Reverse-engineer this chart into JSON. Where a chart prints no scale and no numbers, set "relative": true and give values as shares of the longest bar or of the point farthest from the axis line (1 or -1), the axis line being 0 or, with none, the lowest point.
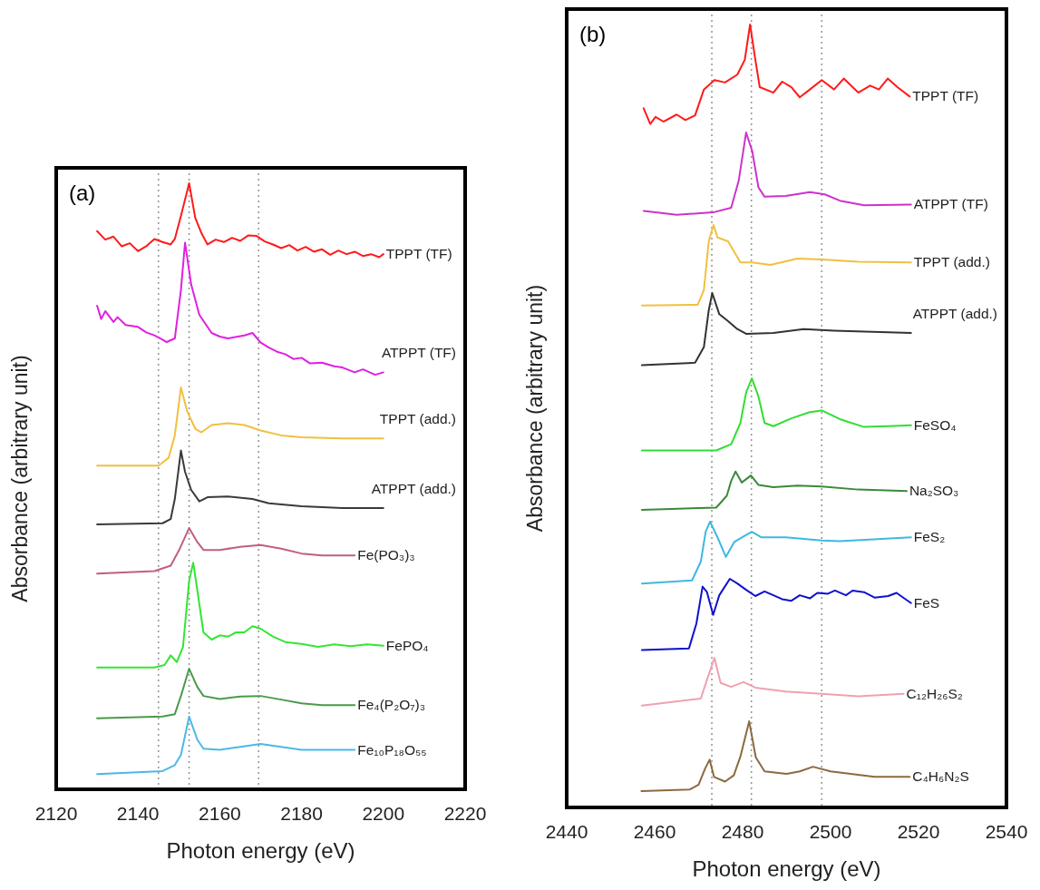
{
  "chart_data": [
    {
      "type": "line",
      "title": "(a)",
      "xlabel": "Photon energy (eV)",
      "ylabel": "Absorbance (arbitrary unit)",
      "relative": true,
      "xlim": [
        2120,
        2220
      ],
      "xticks": [
        2120,
        2140,
        2160,
        2180,
        2200,
        2220
      ],
      "ref_lines": [
        {
          "axis": "x",
          "value": 2145,
          "line_style": "dotted",
          "color": "#999999"
        },
        {
          "axis": "x",
          "value": 2152.5,
          "line_style": "dotted",
          "color": "#999999"
        },
        {
          "axis": "x",
          "value": 2169.5,
          "line_style": "dotted",
          "color": "#999999"
        }
      ],
      "series": [
        {
          "name": "TPPT (TF)",
          "color": "#ff1a1a",
          "x": [
            2130,
            2132,
            2134,
            2136,
            2138,
            2140,
            2142,
            2144,
            2146,
            2148,
            2149,
            2150.5,
            2152.5,
            2154,
            2155.5,
            2157,
            2159,
            2161,
            2163,
            2165,
            2167,
            2169,
            2171,
            2173,
            2175,
            2177,
            2179,
            2181,
            2183,
            2185,
            2187,
            2189,
            2191,
            2193,
            2195,
            2197,
            2199,
            2200
          ],
          "values": [
            0.921,
            0.907,
            0.912,
            0.896,
            0.901,
            0.888,
            0.896,
            0.908,
            0.903,
            0.899,
            0.908,
            0.946,
            1.0,
            0.943,
            0.918,
            0.899,
            0.907,
            0.903,
            0.91,
            0.905,
            0.914,
            0.913,
            0.904,
            0.899,
            0.893,
            0.898,
            0.889,
            0.895,
            0.887,
            0.891,
            0.882,
            0.889,
            0.883,
            0.887,
            0.88,
            0.883,
            0.878,
            0.883
          ]
        },
        {
          "name": "ATPPT (TF)",
          "color": "#e020e0",
          "x": [
            2130,
            2131,
            2132,
            2134,
            2135,
            2137,
            2140,
            2142,
            2144,
            2146,
            2147,
            2149,
            2150.5,
            2151.5,
            2153,
            2155,
            2158,
            2160,
            2162,
            2166,
            2168,
            2170,
            2172,
            2174,
            2176,
            2178,
            2180,
            2182,
            2185,
            2188,
            2190,
            2193,
            2195,
            2198,
            2200
          ],
          "values": [
            0.798,
            0.776,
            0.789,
            0.771,
            0.779,
            0.766,
            0.763,
            0.754,
            0.749,
            0.742,
            0.738,
            0.744,
            0.824,
            0.902,
            0.833,
            0.783,
            0.753,
            0.747,
            0.744,
            0.749,
            0.753,
            0.737,
            0.729,
            0.722,
            0.718,
            0.71,
            0.712,
            0.703,
            0.704,
            0.698,
            0.696,
            0.688,
            0.693,
            0.684,
            0.688
          ]
        },
        {
          "name": "TPPT (add.)",
          "color": "#f0c040",
          "x": [
            2130,
            2145,
            2147.5,
            2149,
            2150.5,
            2152,
            2154,
            2155.5,
            2158,
            2162,
            2166,
            2170,
            2175,
            2180,
            2190,
            2200
          ],
          "values": [
            0.534,
            0.534,
            0.547,
            0.584,
            0.663,
            0.624,
            0.595,
            0.589,
            0.601,
            0.604,
            0.601,
            0.592,
            0.584,
            0.581,
            0.579,
            0.579
          ]
        },
        {
          "name": "ATPPT (add.)",
          "color": "#3a3a3a",
          "x": [
            2130,
            2146,
            2148,
            2149,
            2150.5,
            2151.5,
            2153,
            2155,
            2157,
            2162,
            2168,
            2172,
            2180,
            2190,
            2200
          ],
          "values": [
            0.437,
            0.439,
            0.446,
            0.479,
            0.559,
            0.524,
            0.494,
            0.475,
            0.482,
            0.483,
            0.479,
            0.472,
            0.467,
            0.464,
            0.464
          ]
        },
        {
          "name": "Fe(PO₃)₃",
          "color": "#c0607a",
          "x": [
            2130,
            2144,
            2148,
            2150,
            2152.5,
            2154.5,
            2156,
            2160,
            2165,
            2170,
            2175,
            2180,
            2185,
            2193
          ],
          "values": [
            0.356,
            0.36,
            0.369,
            0.394,
            0.431,
            0.408,
            0.395,
            0.395,
            0.4,
            0.403,
            0.397,
            0.389,
            0.386,
            0.386
          ]
        },
        {
          "name": "FePO₄",
          "color": "#33e633",
          "x": [
            2130,
            2144,
            2146.5,
            2148,
            2149.5,
            2151,
            2152.5,
            2153.5,
            2154.5,
            2156,
            2158,
            2160,
            2162,
            2164,
            2166,
            2168,
            2170,
            2173,
            2176,
            2180,
            2184,
            2188,
            2192,
            2196,
            2200
          ],
          "values": [
            0.201,
            0.201,
            0.205,
            0.221,
            0.21,
            0.235,
            0.344,
            0.374,
            0.329,
            0.259,
            0.247,
            0.254,
            0.252,
            0.259,
            0.259,
            0.269,
            0.265,
            0.252,
            0.243,
            0.24,
            0.235,
            0.239,
            0.236,
            0.239,
            0.237
          ]
        },
        {
          "name": "Fe₄(P₂O₇)₃",
          "color": "#4a9a4a",
          "x": [
            2130,
            2146,
            2149,
            2150.5,
            2152.5,
            2154.5,
            2156,
            2160,
            2165,
            2170,
            2175,
            2180,
            2185,
            2193
          ],
          "values": [
            0.117,
            0.12,
            0.124,
            0.154,
            0.199,
            0.169,
            0.154,
            0.149,
            0.153,
            0.154,
            0.148,
            0.142,
            0.139,
            0.139
          ]
        },
        {
          "name": "Fe₁₀P₁₈O₅₅",
          "color": "#4cb8e8",
          "x": [
            2130,
            2146,
            2149,
            2150.5,
            2152.5,
            2154.5,
            2156,
            2160,
            2165,
            2170,
            2175,
            2180,
            2193
          ],
          "values": [
            0.025,
            0.03,
            0.04,
            0.057,
            0.12,
            0.082,
            0.067,
            0.065,
            0.07,
            0.075,
            0.07,
            0.065,
            0.065
          ]
        }
      ]
    },
    {
      "type": "line",
      "title": "(b)",
      "xlabel": "Photon energy (eV)",
      "ylabel": "Absorbance (arbitrary unit)",
      "relative": true,
      "xlim": [
        2440,
        2540
      ],
      "xticks": [
        2440,
        2460,
        2480,
        2500,
        2520,
        2540
      ],
      "ref_lines": [
        {
          "axis": "x",
          "value": 2473,
          "line_style": "dotted",
          "color": "#999999"
        },
        {
          "axis": "x",
          "value": 2482,
          "line_style": "dotted",
          "color": "#999999"
        },
        {
          "axis": "x",
          "value": 2498,
          "line_style": "dotted",
          "color": "#999999"
        }
      ],
      "series": [
        {
          "name": "TPPT (TF)",
          "color": "#ff1a1a",
          "x": [
            2457.5,
            2459,
            2460.2,
            2462,
            2465,
            2467,
            2469.2,
            2471.2,
            2473.6,
            2476,
            2478.8,
            2480.5,
            2481.7,
            2482.9,
            2483.9,
            2487,
            2489,
            2491.1,
            2493,
            2495.3,
            2498,
            2500.8,
            2503,
            2506.3,
            2509,
            2511,
            2513,
            2515.2,
            2518
          ],
          "values": [
            0.893,
            0.873,
            0.882,
            0.876,
            0.885,
            0.878,
            0.884,
            0.917,
            0.929,
            0.926,
            0.936,
            0.955,
            1.0,
            0.955,
            0.92,
            0.913,
            0.927,
            0.92,
            0.907,
            0.917,
            0.929,
            0.917,
            0.931,
            0.913,
            0.922,
            0.917,
            0.931,
            0.92,
            0.908
          ]
        },
        {
          "name": "ATPPT (TF)",
          "color": "#cc33cc",
          "x": [
            2457.5,
            2465,
            2473.3,
            2477.4,
            2479.1,
            2480.8,
            2482.2,
            2483.6,
            2485,
            2489.8,
            2495.3,
            2498.7,
            2502.1,
            2507.6,
            2518.3
          ],
          "values": [
            0.762,
            0.757,
            0.76,
            0.766,
            0.8,
            0.862,
            0.838,
            0.792,
            0.78,
            0.781,
            0.786,
            0.783,
            0.775,
            0.769,
            0.77
          ]
        },
        {
          "name": "TPPT (add.)",
          "color": "#f0c040",
          "x": [
            2457.1,
            2469.8,
            2471.2,
            2472.3,
            2473.4,
            2474.3,
            2476.7,
            2479.5,
            2482.2,
            2486.3,
            2492.5,
            2498,
            2506.3,
            2518.3
          ],
          "values": [
            0.641,
            0.642,
            0.661,
            0.723,
            0.744,
            0.728,
            0.723,
            0.696,
            0.696,
            0.693,
            0.701,
            0.7,
            0.697,
            0.696
          ]
        },
        {
          "name": "ATPPT (add.)",
          "color": "#333333",
          "x": [
            2457.1,
            2469.2,
            2471.2,
            2472.3,
            2473.1,
            2474.7,
            2476.7,
            2478.8,
            2480.8,
            2487,
            2493.9,
            2500.8,
            2518.3
          ],
          "values": [
            0.565,
            0.568,
            0.588,
            0.635,
            0.657,
            0.63,
            0.621,
            0.611,
            0.605,
            0.606,
            0.611,
            0.609,
            0.606
          ]
        },
        {
          "name": "FeSO₄",
          "color": "#33dd33",
          "x": [
            2457.1,
            2474,
            2477.4,
            2479.5,
            2480.8,
            2482.1,
            2483.6,
            2485,
            2487,
            2491.1,
            2495.3,
            2498,
            2502.1,
            2507.6,
            2513.1,
            2518.3
          ],
          "values": [
            0.456,
            0.456,
            0.464,
            0.491,
            0.53,
            0.548,
            0.525,
            0.491,
            0.487,
            0.497,
            0.505,
            0.507,
            0.496,
            0.486,
            0.487,
            0.488
          ]
        },
        {
          "name": "Na₂SO₃",
          "color": "#3a8a3a",
          "x": [
            2457.1,
            2474,
            2476.4,
            2477.4,
            2478.4,
            2479.8,
            2481.9,
            2483.6,
            2487,
            2492.5,
            2498,
            2506.3,
            2517.3
          ],
          "values": [
            0.38,
            0.383,
            0.398,
            0.417,
            0.429,
            0.415,
            0.424,
            0.412,
            0.409,
            0.411,
            0.41,
            0.406,
            0.404
          ]
        },
        {
          "name": "FeS₂",
          "color": "#40b8e0",
          "x": [
            2457.1,
            2468.5,
            2470.5,
            2471.6,
            2472.6,
            2474.3,
            2476.2,
            2478.1,
            2480.2,
            2482.1,
            2484.3,
            2489.8,
            2498,
            2502.1,
            2518.3
          ],
          "values": [
            0.286,
            0.29,
            0.314,
            0.352,
            0.365,
            0.345,
            0.32,
            0.339,
            0.346,
            0.352,
            0.345,
            0.345,
            0.341,
            0.34,
            0.345
          ]
        },
        {
          "name": "FeS",
          "color": "#1010cc",
          "x": [
            2457.1,
            2467.8,
            2469.5,
            2470.9,
            2471.9,
            2473.3,
            2474.7,
            2477.1,
            2478.8,
            2480.8,
            2482.9,
            2485,
            2487,
            2489,
            2491.1,
            2493,
            2495.3,
            2497,
            2499.4,
            2501,
            2503.5,
            2505,
            2507.6,
            2510,
            2513.1,
            2515,
            2518.3
          ],
          "values": [
            0.201,
            0.203,
            0.235,
            0.282,
            0.275,
            0.246,
            0.271,
            0.292,
            0.286,
            0.278,
            0.27,
            0.276,
            0.271,
            0.266,
            0.264,
            0.271,
            0.267,
            0.274,
            0.273,
            0.277,
            0.271,
            0.277,
            0.275,
            0.268,
            0.27,
            0.274,
            0.261
          ]
        },
        {
          "name": "C₁₂H₂₆S₂",
          "color": "#f0a0b0",
          "x": [
            2457.1,
            2470.5,
            2471.9,
            2473.6,
            2475,
            2477.4,
            2480.2,
            2482.9,
            2489.8,
            2498,
            2506.3,
            2516.6
          ],
          "values": [
            0.13,
            0.139,
            0.163,
            0.191,
            0.159,
            0.154,
            0.16,
            0.153,
            0.148,
            0.145,
            0.142,
            0.145
          ]
        },
        {
          "name": "C₄H₆N₂S",
          "color": "#8b6a40",
          "x": [
            2457,
            2468,
            2470,
            2471.5,
            2472.5,
            2473.5,
            2476,
            2478,
            2479.5,
            2481.5,
            2483,
            2485,
            2490,
            2493,
            2496,
            2500,
            2510,
            2518
          ],
          "values": [
            0.021,
            0.023,
            0.029,
            0.05,
            0.061,
            0.039,
            0.033,
            0.041,
            0.065,
            0.11,
            0.064,
            0.046,
            0.043,
            0.046,
            0.052,
            0.046,
            0.039,
            0.039
          ]
        }
      ]
    }
  ]
}
